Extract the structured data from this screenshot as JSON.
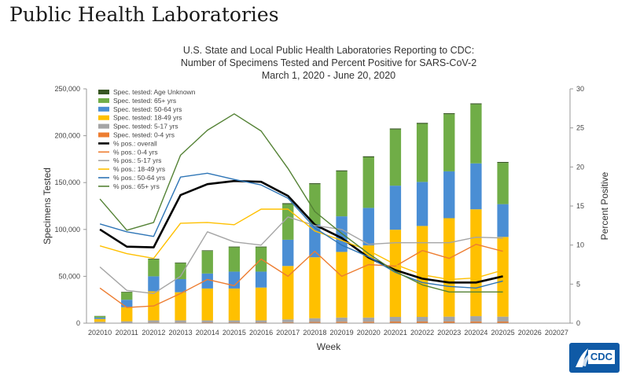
{
  "page": {
    "title": "Public Health Laboratories"
  },
  "logo": {
    "text": "CDC"
  },
  "chart_data": {
    "type": "bar",
    "title": [
      "U.S. State and Local Public Health Laboratories Reporting to CDC:",
      "Number of Specimens Tested and Percent Positive for SARS-CoV-2",
      "March 1, 2020 - June 20, 2020"
    ],
    "xlabel": "Week",
    "ylabel": "Specimens Tested",
    "y2label": "Percent Positive",
    "ylim": [
      0,
      250000
    ],
    "y2lim": [
      0,
      30
    ],
    "ytick_labels": [
      "0",
      "50,000",
      "100,000",
      "150,000",
      "200,000",
      "250,000"
    ],
    "y2tick_labels": [
      "0",
      "5",
      "10",
      "15",
      "20",
      "25",
      "30"
    ],
    "categories": [
      "202010",
      "202011",
      "202012",
      "202013",
      "202014",
      "202015",
      "202016",
      "202017",
      "202018",
      "202019",
      "202020",
      "202021",
      "202022",
      "202023",
      "202024",
      "202025",
      "202026",
      "202027"
    ],
    "stacked_series": [
      {
        "name": "Spec. tested: 0-4 yrs",
        "color": "#ed7d31",
        "values": [
          300,
          500,
          700,
          700,
          800,
          800,
          800,
          1000,
          1300,
          1500,
          1500,
          1700,
          1700,
          1700,
          1800,
          1700,
          0,
          0
        ]
      },
      {
        "name": "Spec. tested: 5-17 yrs",
        "color": "#a5a5a5",
        "values": [
          1200,
          1500,
          2300,
          2300,
          2200,
          2200,
          2200,
          3000,
          4000,
          4500,
          4500,
          5000,
          5000,
          5300,
          5700,
          5300,
          0,
          0
        ]
      },
      {
        "name": "Spec. tested: 18-49 yrs",
        "color": "#ffc000",
        "values": [
          3000,
          15000,
          31000,
          30000,
          34000,
          34000,
          35000,
          57000,
          65000,
          70000,
          77000,
          93000,
          97000,
          105000,
          114000,
          85000,
          0,
          0
        ]
      },
      {
        "name": "Spec. tested: 50-64 yrs",
        "color": "#4a8ed4",
        "values": [
          1500,
          8000,
          16000,
          14000,
          16000,
          18000,
          17000,
          28000,
          35000,
          38000,
          40000,
          47000,
          47000,
          50000,
          49000,
          35000,
          0,
          0
        ]
      },
      {
        "name": "Spec. tested: 65+ yrs",
        "color": "#70ad47",
        "values": [
          1500,
          8000,
          18000,
          17000,
          24000,
          26000,
          26000,
          38000,
          43000,
          48000,
          54000,
          60000,
          62000,
          61000,
          63000,
          44000,
          0,
          0
        ]
      },
      {
        "name": "Spec. tested: Age Unknown",
        "color": "#375623",
        "values": [
          200,
          500,
          700,
          700,
          700,
          700,
          700,
          1000,
          1000,
          1000,
          1000,
          1000,
          1000,
          1000,
          1000,
          1000,
          0,
          0
        ]
      }
    ],
    "line_series": [
      {
        "name": "% pos.: overall",
        "color": "#000000",
        "width": 2.6,
        "values": [
          12.0,
          9.8,
          9.7,
          16.4,
          17.8,
          18.2,
          18.1,
          16.3,
          12.6,
          10.9,
          8.4,
          6.8,
          5.7,
          5.2,
          5.2,
          6.0
        ]
      },
      {
        "name": "% pos.: 0-4 yrs",
        "color": "#ed7d31",
        "width": 1.4,
        "values": [
          4.5,
          2.0,
          2.2,
          3.8,
          5.6,
          4.8,
          8.2,
          6.0,
          9.2,
          6.0,
          7.5,
          7.3,
          9.3,
          8.3,
          10.1,
          9.2
        ]
      },
      {
        "name": "% pos.: 5-17 yrs",
        "color": "#a5a5a5",
        "width": 1.4,
        "values": [
          7.2,
          4.2,
          3.8,
          6.0,
          11.7,
          10.4,
          10.0,
          13.6,
          12.5,
          12.0,
          10.1,
          10.3,
          10.3,
          10.3,
          11.0,
          10.9
        ]
      },
      {
        "name": "% pos.: 18-49 yrs",
        "color": "#ffc000",
        "width": 1.4,
        "values": [
          9.9,
          8.9,
          8.3,
          12.8,
          12.9,
          12.6,
          14.6,
          14.6,
          11.8,
          10.6,
          9.3,
          7.5,
          6.2,
          5.6,
          5.8,
          6.8
        ]
      },
      {
        "name": "% pos.: 50-64 yrs",
        "color": "#2e75b6",
        "width": 1.4,
        "values": [
          12.7,
          11.7,
          11.1,
          18.7,
          19.2,
          18.4,
          17.7,
          16.0,
          12.2,
          10.0,
          8.5,
          6.5,
          5.2,
          4.7,
          4.5,
          5.4
        ]
      },
      {
        "name": "% pos.: 65+ yrs",
        "color": "#548235",
        "width": 1.4,
        "values": [
          15.9,
          11.9,
          12.9,
          21.5,
          24.7,
          26.8,
          24.6,
          19.8,
          14.3,
          11.5,
          8.9,
          6.6,
          4.9,
          4.0,
          4.0,
          4.0
        ]
      }
    ],
    "legend": [
      {
        "label": "Spec. tested: Age Unknown",
        "kind": "bar",
        "color": "#375623"
      },
      {
        "label": "Spec. tested: 65+ yrs",
        "kind": "bar",
        "color": "#70ad47"
      },
      {
        "label": "Spec. tested: 50-64 yrs",
        "kind": "bar",
        "color": "#4a8ed4"
      },
      {
        "label": "Spec. tested: 18-49 yrs",
        "kind": "bar",
        "color": "#ffc000"
      },
      {
        "label": "Spec. tested: 5-17 yrs",
        "kind": "bar",
        "color": "#a5a5a5"
      },
      {
        "label": "Spec. tested: 0-4 yrs",
        "kind": "bar",
        "color": "#ed7d31"
      },
      {
        "label": "% pos.: overall",
        "kind": "line",
        "color": "#000000"
      },
      {
        "label": "% pos.: 0-4 yrs",
        "kind": "line",
        "color": "#ed7d31"
      },
      {
        "label": "% pos.: 5-17 yrs",
        "kind": "line",
        "color": "#a5a5a5"
      },
      {
        "label": "% pos.: 18-49 yrs",
        "kind": "line",
        "color": "#ffc000"
      },
      {
        "label": "% pos.: 50-64 yrs",
        "kind": "line",
        "color": "#2e75b6"
      },
      {
        "label": "% pos.: 65+ yrs",
        "kind": "line",
        "color": "#548235"
      }
    ]
  }
}
